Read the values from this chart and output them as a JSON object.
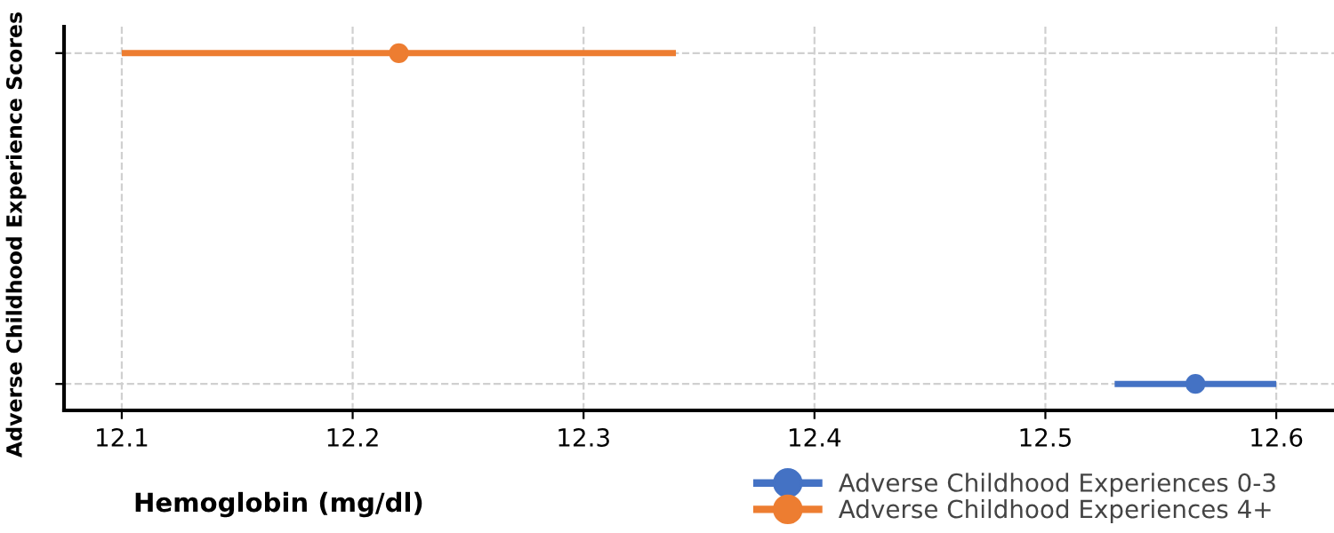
{
  "chart_data": {
    "type": "scatter",
    "orientation": "horizontal",
    "categories": [
      null,
      null
    ],
    "xlabel": "Hemoglobin (mg/dl)",
    "ylabel": "Adverse Childhood Experience Scores",
    "series": [
      {
        "name": "Adverse Childhood Experiences 0-3",
        "color": "#4472c4",
        "values": [
          null,
          12.565
        ],
        "errors": [
          null,
          [
            12.53,
            12.6
          ]
        ]
      },
      {
        "name": "Adverse Childhood Experiences 4+",
        "color": "#ed7d31",
        "values": [
          12.22,
          null
        ],
        "errors": [
          [
            12.1,
            12.34
          ],
          null
        ]
      }
    ],
    "xlim": [
      12.075,
      12.625
    ],
    "xticks": [
      12.1,
      12.2,
      12.3,
      12.4,
      12.5,
      12.6
    ],
    "grid": true,
    "legend": "bottom right",
    "marker": "circle",
    "line_style": "solid"
  }
}
